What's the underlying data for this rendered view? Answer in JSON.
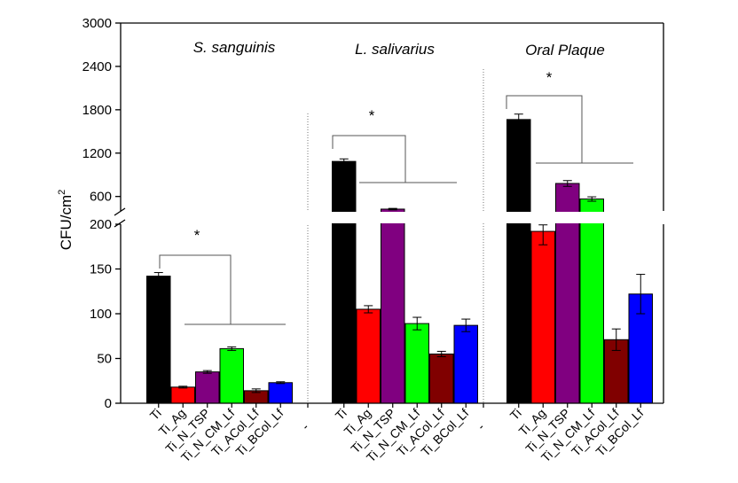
{
  "chart_data": {
    "type": "bar",
    "ylabel": "CFU/cm",
    "ylabel_superscript": "2",
    "y_axis_break": true,
    "lower_ylim": [
      0,
      200
    ],
    "upper_ylim": [
      400,
      3000
    ],
    "lower_ticks": [
      "0",
      "50",
      "100",
      "150",
      "200"
    ],
    "upper_ticks": [
      "600",
      "1200",
      "1800",
      "2400",
      "3000"
    ],
    "categories": [
      "Ti",
      "Ti_Ag",
      "Ti_N_TSP",
      "Ti_N_CM_Lf",
      "Ti_ACol_Lf",
      "Ti_BCol_Lf"
    ],
    "separator_label": "-",
    "significance_marker": "*",
    "colors": [
      "#000000",
      "#ff0000",
      "#800080",
      "#00ff00",
      "#800000",
      "#0000ff"
    ],
    "groups": [
      {
        "name": "S. sanguinis",
        "values": [
          142,
          18,
          35,
          61,
          14,
          23
        ],
        "errors": [
          4,
          1,
          1.5,
          2,
          2,
          1
        ]
      },
      {
        "name": "L. salivarius",
        "values": [
          1085,
          105,
          425,
          89,
          55,
          87
        ],
        "errors": [
          35,
          4,
          10,
          7,
          3,
          7
        ]
      },
      {
        "name": "Oral Plaque",
        "values": [
          1665,
          192,
          780,
          565,
          71,
          122
        ],
        "errors": [
          75,
          15,
          40,
          30,
          12,
          22
        ]
      }
    ]
  }
}
